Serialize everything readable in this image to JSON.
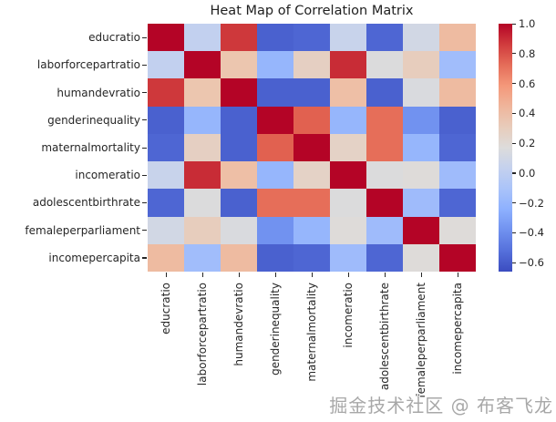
{
  "title": "Heat Map of Correlation Matrix",
  "watermark": "掘金技术社区 @ 布客飞龙",
  "chart_data": {
    "type": "heatmap",
    "colormap": "coolwarm",
    "vmin": -0.66,
    "vmax": 1.0,
    "variables": [
      "educratio",
      "laborforcepartratio",
      "humandevratio",
      "genderinequality",
      "maternalmortality",
      "incomeratio",
      "adolescentbirthrate",
      "femaleperparliament",
      "incomepercapita"
    ],
    "matrix": [
      [
        1.0,
        0.02,
        0.87,
        -0.58,
        -0.56,
        0.05,
        -0.56,
        0.1,
        0.42
      ],
      [
        0.02,
        1.0,
        0.36,
        -0.2,
        0.28,
        0.9,
        0.16,
        0.3,
        -0.15
      ],
      [
        0.87,
        0.36,
        1.0,
        -0.58,
        -0.58,
        0.4,
        -0.58,
        0.15,
        0.42
      ],
      [
        -0.58,
        -0.2,
        -0.58,
        1.0,
        0.76,
        -0.2,
        0.72,
        -0.38,
        -0.58
      ],
      [
        -0.56,
        0.28,
        -0.58,
        0.76,
        1.0,
        0.26,
        0.72,
        -0.2,
        -0.56
      ],
      [
        0.05,
        0.9,
        0.4,
        -0.2,
        0.26,
        1.0,
        0.16,
        0.18,
        -0.16
      ],
      [
        -0.56,
        0.16,
        -0.58,
        0.72,
        0.72,
        0.16,
        1.0,
        -0.16,
        -0.56
      ],
      [
        0.1,
        0.3,
        0.15,
        -0.38,
        -0.2,
        0.18,
        -0.16,
        1.0,
        0.18
      ],
      [
        0.42,
        -0.15,
        0.42,
        -0.58,
        -0.56,
        -0.16,
        -0.56,
        0.18,
        1.0
      ]
    ],
    "colorbar_ticks": [
      1.0,
      0.8,
      0.6,
      0.4,
      0.2,
      0.0,
      -0.2,
      -0.4,
      -0.6
    ],
    "colorbar_tick_labels": [
      "1.0",
      "0.8",
      "0.6",
      "0.4",
      "0.2",
      "0.0",
      "−0.2",
      "−0.4",
      "−0.6"
    ],
    "legend_position": "right",
    "grid": false
  }
}
